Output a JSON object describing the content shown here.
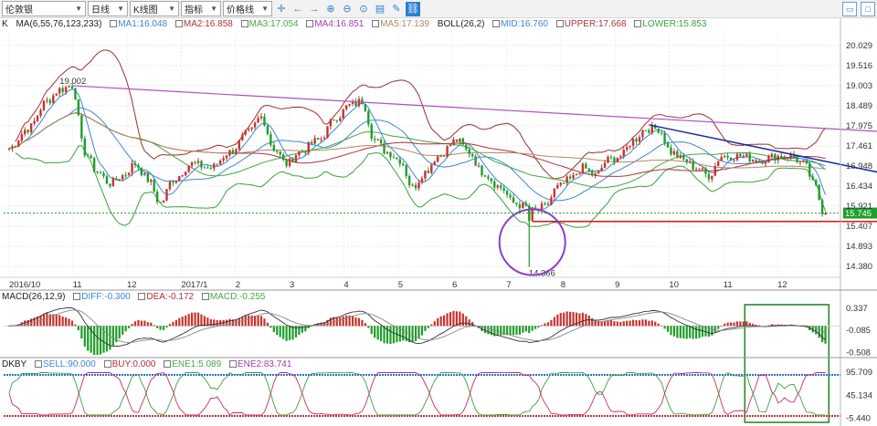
{
  "toolbar": {
    "instrument": "伦敦银",
    "period": "日线",
    "chart_type": "K线图",
    "indicator": "指标",
    "price_line": "价格线"
  },
  "colors": {
    "up": "#c8332f",
    "down": "#1f9d2a",
    "ma1": "#3a87d6",
    "ma2": "#b0303a",
    "ma3": "#43a843",
    "ma4": "#a33cab",
    "ma5": "#b08a60",
    "boll_mid": "#3a87d6",
    "boll_upper": "#9c3030",
    "boll_lower": "#3aa23a",
    "trend_purple": "#b04fc0",
    "trend_blue": "#1a2aa0",
    "support_red": "#e01010",
    "circle": "#8a3fc8",
    "box_green": "#2a8a2a",
    "current_price_bg": "#1c9e2c",
    "sell": "#d03030",
    "buy": "#2f6fd0",
    "ene1": "#3aa23a",
    "ene2": "#c03060"
  },
  "legends": {
    "main": {
      "prefix": "K",
      "ma": "MA(6,55,76,123,233)",
      "ma1": "MA1:16.048",
      "ma2": "MA2:16.858",
      "ma3": "MA3:17.054",
      "ma4": "MA4:16.851",
      "ma5": "MA5:17.139",
      "boll": "BOLL(26,2)",
      "mid": "MID:16.760",
      "upper": "UPPER:17.668",
      "lower": "LOWER:15.853"
    },
    "macd": {
      "name": "MACD(26,12,9)",
      "diff": "DIFF:-0.300",
      "dea": "DEA:-0.172",
      "macd": "MACD:-0.255"
    },
    "dkby": {
      "name": "DKBY",
      "sell": "SELL:90.000",
      "buy": "BUY:0.000",
      "ene1": "ENE1:5.089",
      "ene2": "ENE2:83.741"
    }
  },
  "chart_data": [
    {
      "type": "candlestick",
      "name": "price",
      "y_ticks": [
        "20.029",
        "19.516",
        "19.003",
        "18.489",
        "17.975",
        "17.461",
        "16.948",
        "16.434",
        "15.921",
        "15.407",
        "14.893",
        "14.380"
      ],
      "ylim": [
        14.15,
        20.35
      ],
      "x_labels": [
        "2016/10",
        "11",
        "12",
        "2017/1",
        "2",
        "3",
        "4",
        "5",
        "6",
        "7",
        "8",
        "9",
        "10",
        "11",
        "12"
      ],
      "current_price": "15.745",
      "annotations": {
        "high": "19.002",
        "low": "14.366"
      },
      "anchors": [
        [
          0,
          17.4
        ],
        [
          6,
          17.9
        ],
        [
          12,
          18.6
        ],
        [
          16,
          18.9
        ],
        [
          20,
          19.0
        ],
        [
          24,
          17.3
        ],
        [
          28,
          16.8
        ],
        [
          32,
          16.5
        ],
        [
          36,
          16.7
        ],
        [
          40,
          17.0
        ],
        [
          44,
          16.6
        ],
        [
          48,
          16.0
        ],
        [
          52,
          16.6
        ],
        [
          58,
          17.0
        ],
        [
          64,
          16.9
        ],
        [
          70,
          17.3
        ],
        [
          76,
          17.8
        ],
        [
          80,
          18.2
        ],
        [
          84,
          17.4
        ],
        [
          88,
          17.0
        ],
        [
          92,
          17.3
        ],
        [
          98,
          17.6
        ],
        [
          104,
          18.2
        ],
        [
          108,
          18.5
        ],
        [
          112,
          18.6
        ],
        [
          116,
          17.6
        ],
        [
          120,
          17.3
        ],
        [
          124,
          17.1
        ],
        [
          128,
          16.4
        ],
        [
          132,
          16.8
        ],
        [
          136,
          17.2
        ],
        [
          142,
          17.6
        ],
        [
          146,
          17.3
        ],
        [
          150,
          16.8
        ],
        [
          156,
          16.4
        ],
        [
          160,
          16.0
        ],
        [
          164,
          15.9
        ],
        [
          166,
          15.8
        ],
        [
          170,
          15.9
        ],
        [
          174,
          16.4
        ],
        [
          178,
          16.6
        ],
        [
          182,
          16.9
        ],
        [
          186,
          16.7
        ],
        [
          190,
          17.1
        ],
        [
          194,
          17.2
        ],
        [
          198,
          17.6
        ],
        [
          202,
          17.9
        ],
        [
          206,
          17.9
        ],
        [
          210,
          17.3
        ],
        [
          214,
          17.1
        ],
        [
          218,
          16.9
        ],
        [
          222,
          16.7
        ],
        [
          226,
          17.2
        ],
        [
          232,
          17.2
        ],
        [
          238,
          17.1
        ],
        [
          244,
          17.2
        ],
        [
          248,
          17.2
        ],
        [
          252,
          17.0
        ],
        [
          256,
          16.4
        ],
        [
          258,
          15.8
        ]
      ],
      "overlays": [
        {
          "name": "MA1",
          "values": "smoothed close, window 6"
        },
        {
          "name": "MA2",
          "values": "smoothed close, window 22"
        },
        {
          "name": "MA3",
          "values": "smoothed close, window 40"
        },
        {
          "name": "MA4",
          "values": "smoothed close, window 70"
        },
        {
          "name": "MA5",
          "values": "smoothed close, window 110"
        }
      ],
      "trendlines": [
        {
          "name": "purple-resistance",
          "from": [
            20,
            19.0
          ],
          "to": [
            278,
            17.82
          ]
        },
        {
          "name": "blue-downtrend",
          "from": [
            203,
            18.0
          ],
          "to": [
            278,
            16.75
          ]
        },
        {
          "name": "red-support",
          "from": [
            166,
            15.53
          ],
          "to": [
            276,
            15.53
          ]
        }
      ]
    },
    {
      "type": "bar",
      "name": "MACD",
      "y_ticks": [
        "0.337",
        "-0.085",
        "-0.508"
      ],
      "ylim": [
        -0.6,
        0.42
      ]
    },
    {
      "type": "line",
      "name": "DKBY",
      "y_ticks": [
        "95.709",
        "45.134",
        "-5.440"
      ],
      "ylim": [
        -8,
        100
      ]
    }
  ]
}
